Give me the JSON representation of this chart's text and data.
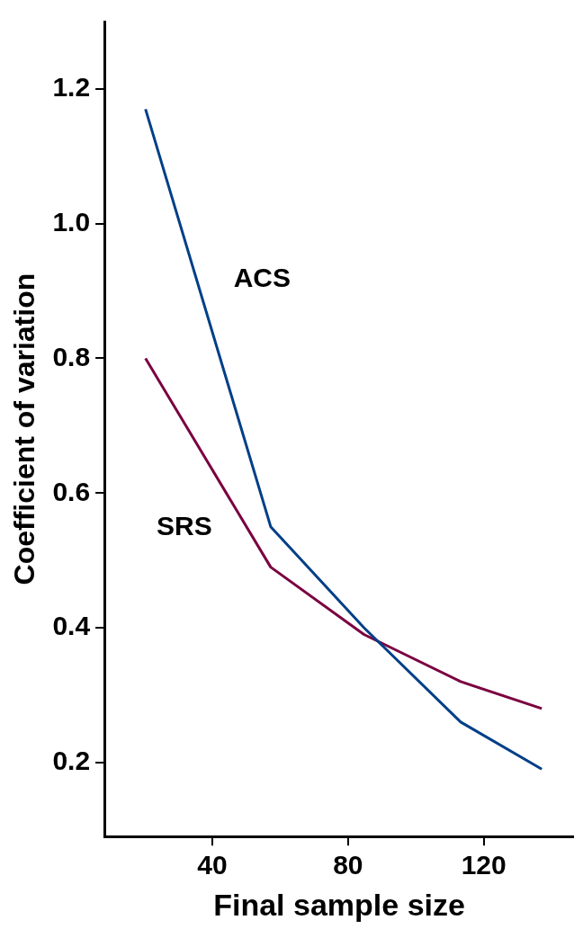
{
  "chart_data": {
    "type": "line",
    "xlabel": "Final sample size",
    "ylabel": "Coefficient of variation",
    "x": [
      20.3,
      57.2,
      84.7,
      113.2,
      137.1
    ],
    "series": [
      {
        "name": "ACS",
        "color": "#003f87",
        "values": [
          1.17,
          0.55,
          0.4,
          0.26,
          0.19
        ]
      },
      {
        "name": "SRS",
        "color": "#7a0040",
        "values": [
          0.8,
          0.49,
          0.39,
          0.32,
          0.28
        ]
      }
    ],
    "xlim": [
      8.2,
      146.6
    ],
    "xticks": [
      40,
      80,
      120
    ],
    "ylim": [
      0.09,
      1.3
    ],
    "yticks": [
      {
        "value": 0.2,
        "label": "0.2"
      },
      {
        "value": 0.4,
        "label": "0.4"
      },
      {
        "value": 0.6,
        "label": "0.6"
      },
      {
        "value": 0.8,
        "label": "0.8"
      },
      {
        "value": 1.0,
        "label": "1.0"
      },
      {
        "value": 1.2,
        "label": "1.2"
      }
    ],
    "grid": false,
    "legend": false,
    "marker": "none",
    "line_style": "solid"
  }
}
